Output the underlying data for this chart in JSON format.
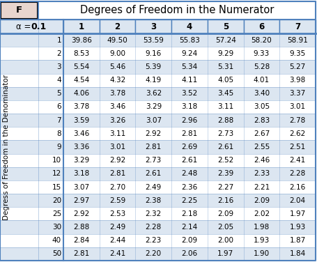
{
  "title": "Degrees of Freedom in the Numerator",
  "f_label": "F",
  "alpha_label": "α = ",
  "alpha_value": "0.1",
  "col_headers": [
    "1",
    "2",
    "3",
    "4",
    "5",
    "6",
    "7"
  ],
  "row_headers": [
    "1",
    "2",
    "3",
    "4",
    "5",
    "6",
    "7",
    "8",
    "9",
    "10",
    "12",
    "15",
    "20",
    "25",
    "30",
    "40",
    "50"
  ],
  "ylabel": "Degress of Freedom in the Denominator",
  "table_data": [
    [
      39.86,
      49.5,
      53.59,
      55.83,
      57.24,
      58.2,
      58.91
    ],
    [
      8.53,
      9.0,
      9.16,
      9.24,
      9.29,
      9.33,
      9.35
    ],
    [
      5.54,
      5.46,
      5.39,
      5.34,
      5.31,
      5.28,
      5.27
    ],
    [
      4.54,
      4.32,
      4.19,
      4.11,
      4.05,
      4.01,
      3.98
    ],
    [
      4.06,
      3.78,
      3.62,
      3.52,
      3.45,
      3.4,
      3.37
    ],
    [
      3.78,
      3.46,
      3.29,
      3.18,
      3.11,
      3.05,
      3.01
    ],
    [
      3.59,
      3.26,
      3.07,
      2.96,
      2.88,
      2.83,
      2.78
    ],
    [
      3.46,
      3.11,
      2.92,
      2.81,
      2.73,
      2.67,
      2.62
    ],
    [
      3.36,
      3.01,
      2.81,
      2.69,
      2.61,
      2.55,
      2.51
    ],
    [
      3.29,
      2.92,
      2.73,
      2.61,
      2.52,
      2.46,
      2.41
    ],
    [
      3.18,
      2.81,
      2.61,
      2.48,
      2.39,
      2.33,
      2.28
    ],
    [
      3.07,
      2.7,
      2.49,
      2.36,
      2.27,
      2.21,
      2.16
    ],
    [
      2.97,
      2.59,
      2.38,
      2.25,
      2.16,
      2.09,
      2.04
    ],
    [
      2.92,
      2.53,
      2.32,
      2.18,
      2.09,
      2.02,
      1.97
    ],
    [
      2.88,
      2.49,
      2.28,
      2.14,
      2.05,
      1.98,
      1.93
    ],
    [
      2.84,
      2.44,
      2.23,
      2.09,
      2.0,
      1.93,
      1.87
    ],
    [
      2.81,
      2.41,
      2.2,
      2.06,
      1.97,
      1.9,
      1.84
    ]
  ],
  "color_even_row": "#dce6f1",
  "color_odd_row": "#ffffff",
  "color_header_bg": "#dce6f1",
  "color_border": "#4f81bd",
  "color_f_box_bg": "#e8d5ce",
  "font_size_title": 10.5,
  "font_size_header": 8.5,
  "font_size_data": 7.5,
  "font_size_ylabel": 7.5
}
